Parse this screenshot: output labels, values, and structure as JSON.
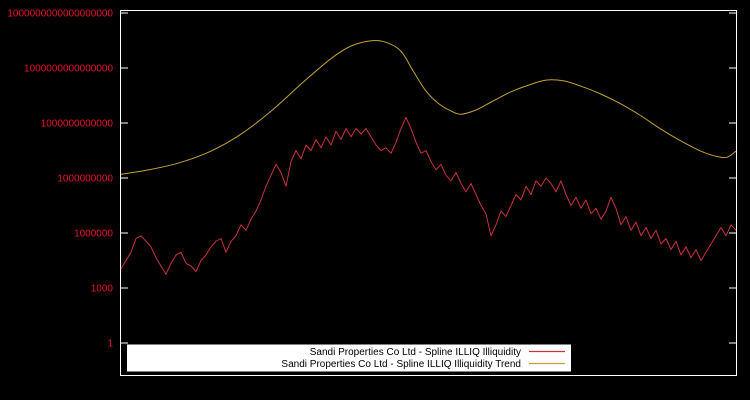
{
  "page": {
    "background": "#000000",
    "border_color": "#ffffff"
  },
  "chart_data": {
    "type": "line",
    "title": "",
    "xlabel": "",
    "ylabel": "",
    "x_axis": {
      "tick_labels": []
    },
    "y_axis": {
      "scale": "log10",
      "tick_color": "#e8112d",
      "tick_labels": [
        "1",
        "1000",
        "1000000",
        "1000000000",
        "1000000000000",
        "1000000000000000",
        "1000000000000000000"
      ],
      "tick_log10": [
        0,
        3,
        6,
        9,
        12,
        15,
        18
      ],
      "ylim_log10": [
        -1.77,
        18.14
      ]
    },
    "legend": {
      "position": "bottom-center",
      "background": "#ffffff",
      "text_color": "#000000",
      "entries": [
        {
          "label": "Sandi Properties Co Ltd - Spline ILLIQ Illiquidity",
          "color": "#c8323c"
        },
        {
          "label": "Sandi Properties Co Ltd - Spline ILLIQ Illiquidity Trend",
          "color": "#c2a03c"
        }
      ]
    },
    "series": [
      {
        "key": "illiquidity",
        "name": "Sandi Properties Co Ltd - Spline ILLIQ Illiquidity",
        "color": "#c8323c",
        "style": "jagged",
        "stroke_width": 1,
        "log10_values": [
          4.05,
          4.5,
          4.95,
          5.7,
          5.85,
          5.55,
          5.25,
          4.65,
          4.2,
          3.75,
          4.35,
          4.8,
          4.95,
          4.35,
          4.2,
          3.9,
          4.5,
          4.8,
          5.25,
          5.55,
          5.7,
          4.95,
          5.55,
          5.85,
          6.45,
          6.15,
          6.75,
          7.2,
          7.8,
          8.55,
          9.15,
          9.75,
          9.3,
          8.55,
          9.9,
          10.5,
          10.05,
          10.8,
          10.5,
          11.1,
          10.65,
          11.25,
          10.8,
          11.55,
          11.1,
          11.7,
          11.25,
          11.7,
          11.4,
          11.7,
          11.25,
          10.8,
          10.5,
          10.65,
          10.35,
          10.95,
          11.7,
          12.3,
          11.7,
          10.95,
          10.35,
          10.5,
          9.9,
          9.45,
          9.75,
          9.15,
          8.85,
          9.3,
          8.7,
          8.25,
          8.7,
          8.1,
          7.5,
          7.05,
          5.85,
          6.45,
          7.2,
          6.9,
          7.5,
          8.1,
          7.8,
          8.55,
          8.1,
          8.85,
          8.55,
          9.0,
          8.7,
          8.25,
          8.85,
          8.1,
          7.5,
          7.95,
          7.35,
          7.8,
          7.05,
          7.35,
          6.75,
          7.2,
          7.95,
          7.35,
          6.45,
          6.9,
          6.15,
          6.6,
          5.85,
          6.3,
          5.7,
          6.15,
          5.4,
          5.7,
          5.1,
          5.55,
          4.8,
          5.25,
          4.65,
          5.1,
          4.5,
          4.95,
          5.4,
          5.85,
          6.3,
          5.85,
          6.45,
          6.15
        ]
      },
      {
        "key": "illiquidity-trend",
        "name": "Sandi Properties Co Ltd - Spline ILLIQ Illiquidity Trend",
        "color": "#c2a03c",
        "style": "smooth",
        "stroke_width": 1,
        "x_frac": [
          0,
          0.049,
          0.098,
          0.146,
          0.195,
          0.244,
          0.293,
          0.341,
          0.374,
          0.407,
          0.431,
          0.455,
          0.475,
          0.496,
          0.517,
          0.537,
          0.553,
          0.577,
          0.605,
          0.634,
          0.663,
          0.691,
          0.719,
          0.748,
          0.78,
          0.813,
          0.846,
          0.878,
          0.911,
          0.943,
          0.967,
          0.985,
          1
        ],
        "log10_values": [
          9.2,
          9.47,
          9.86,
          10.46,
          11.39,
          12.65,
          14.13,
          15.5,
          16.2,
          16.49,
          16.4,
          15.93,
          14.84,
          13.74,
          13.04,
          12.65,
          12.48,
          12.71,
          13.2,
          13.7,
          14.07,
          14.34,
          14.3,
          14.01,
          13.58,
          13.04,
          12.38,
          11.66,
          11.01,
          10.46,
          10.19,
          10.13,
          10.46
        ]
      }
    ]
  }
}
